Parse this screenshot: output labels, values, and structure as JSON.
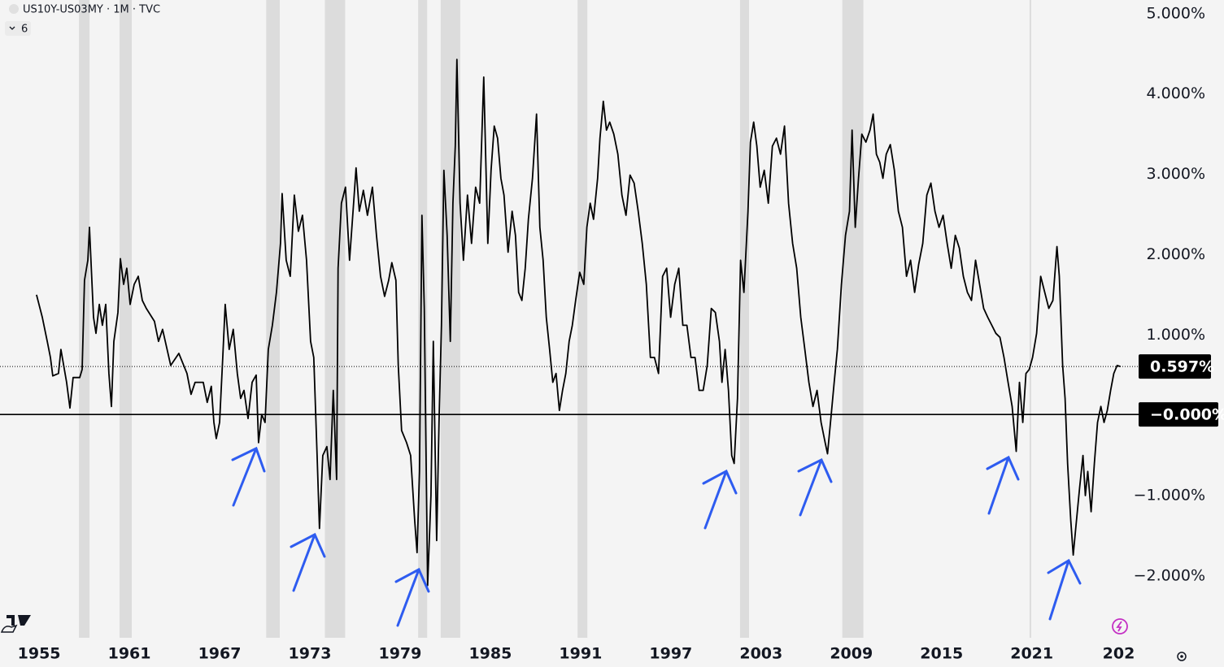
{
  "chart_data": {
    "type": "line",
    "title": "US10Y-US03MY · 1M · TVC",
    "indicator_badge": "6",
    "color": "#000000",
    "xlim": [
      1952.4,
      2028.1
    ],
    "ylim": [
      -2.78,
      5.16
    ],
    "xticks": [
      1955,
      1961,
      1967,
      1973,
      1979,
      1985,
      1991,
      1997,
      2003,
      2009,
      2015,
      2021,
      {
        "value": 2027,
        "label": "202"
      }
    ],
    "yticks": [
      {
        "value": 5,
        "label": "5.000%"
      },
      {
        "value": 4,
        "label": "4.000%"
      },
      {
        "value": 3,
        "label": "3.000%"
      },
      {
        "value": 2,
        "label": "2.000%"
      },
      {
        "value": 1,
        "label": "1.000%"
      },
      {
        "value": -1,
        "label": "−1.000%"
      },
      {
        "value": -2,
        "label": "−2.000%"
      }
    ],
    "price_lines": [
      {
        "value": 0.597,
        "label": "0.597%",
        "style": "dotted"
      },
      {
        "value": 0,
        "label": "−0.000%",
        "style": "solid"
      }
    ],
    "recessions": [
      [
        1957.65,
        1958.35
      ],
      [
        1960.35,
        1961.16
      ],
      [
        1970.1,
        1971.0
      ],
      [
        1974.0,
        1975.35
      ],
      [
        1980.2,
        1980.8
      ],
      [
        1981.7,
        1983.0
      ],
      [
        1990.8,
        1991.45
      ],
      [
        2001.6,
        2002.2
      ],
      [
        2008.4,
        2009.8
      ],
      [
        2020.85,
        2020.93
      ]
    ],
    "x": [
      1954.83,
      1955.21,
      1955.54,
      1955.75,
      1955.91,
      1956.29,
      1956.45,
      1956.83,
      1957.05,
      1957.26,
      1957.7,
      1957.86,
      1958.02,
      1958.24,
      1958.35,
      1958.62,
      1958.78,
      1959.0,
      1959.21,
      1959.43,
      1959.64,
      1959.81,
      1959.97,
      1960.24,
      1960.4,
      1960.62,
      1960.83,
      1961.05,
      1961.32,
      1961.59,
      1961.86,
      1962.13,
      1962.67,
      1962.94,
      1963.21,
      1963.75,
      1964.29,
      1964.83,
      1965.1,
      1965.37,
      1965.91,
      1966.18,
      1966.45,
      1966.62,
      1966.78,
      1967.0,
      1967.21,
      1967.37,
      1967.64,
      1967.91,
      1968.18,
      1968.4,
      1968.62,
      1968.89,
      1969.16,
      1969.43,
      1969.59,
      1969.8,
      1970.02,
      1970.24,
      1970.51,
      1970.78,
      1971.05,
      1971.16,
      1971.43,
      1971.7,
      1971.97,
      1972.24,
      1972.51,
      1972.78,
      1973.05,
      1973.26,
      1973.48,
      1973.64,
      1973.86,
      1974.13,
      1974.34,
      1974.56,
      1974.78,
      1974.88,
      1975.1,
      1975.37,
      1975.64,
      1975.91,
      1976.07,
      1976.29,
      1976.56,
      1976.83,
      1977.16,
      1977.43,
      1977.7,
      1977.97,
      1978.24,
      1978.45,
      1978.72,
      1978.88,
      1979.1,
      1979.43,
      1979.7,
      1979.97,
      1980.13,
      1980.29,
      1980.45,
      1980.61,
      1980.83,
      1981.05,
      1981.21,
      1981.43,
      1981.59,
      1981.75,
      1981.91,
      1982.13,
      1982.34,
      1982.51,
      1982.67,
      1982.78,
      1982.99,
      1983.21,
      1983.48,
      1983.75,
      1984.02,
      1984.29,
      1984.56,
      1984.83,
      1985.05,
      1985.26,
      1985.48,
      1985.7,
      1985.91,
      1986.18,
      1986.45,
      1986.67,
      1986.88,
      1987.1,
      1987.32,
      1987.53,
      1987.8,
      1988.07,
      1988.29,
      1988.51,
      1988.72,
      1988.94,
      1989.15,
      1989.37,
      1989.59,
      1989.8,
      1990.02,
      1990.24,
      1990.45,
      1990.67,
      1990.94,
      1991.21,
      1991.42,
      1991.64,
      1991.86,
      1992.13,
      1992.29,
      1992.51,
      1992.72,
      1992.94,
      1993.21,
      1993.48,
      1993.75,
      1994.02,
      1994.29,
      1994.56,
      1994.83,
      1995.1,
      1995.37,
      1995.64,
      1995.91,
      1996.18,
      1996.45,
      1996.72,
      1996.99,
      1997.26,
      1997.53,
      1997.8,
      1998.07,
      1998.34,
      1998.61,
      1998.88,
      1999.15,
      1999.42,
      1999.69,
      1999.96,
      2000.23,
      2000.4,
      2000.61,
      2000.83,
      2001.05,
      2001.21,
      2001.43,
      2001.64,
      2001.86,
      2002.13,
      2002.29,
      2002.51,
      2002.72,
      2002.94,
      2003.21,
      2003.48,
      2003.75,
      2004.02,
      2004.29,
      2004.56,
      2004.83,
      2005.1,
      2005.37,
      2005.64,
      2005.91,
      2006.18,
      2006.45,
      2006.72,
      2006.99,
      2007.26,
      2007.42,
      2007.64,
      2007.86,
      2008.07,
      2008.34,
      2008.61,
      2008.88,
      2009.05,
      2009.26,
      2009.48,
      2009.7,
      2009.97,
      2010.24,
      2010.45,
      2010.67,
      2010.89,
      2011.1,
      2011.32,
      2011.59,
      2011.86,
      2012.13,
      2012.4,
      2012.67,
      2012.94,
      2013.21,
      2013.48,
      2013.75,
      2014.02,
      2014.29,
      2014.56,
      2014.83,
      2015.1,
      2015.37,
      2015.64,
      2015.91,
      2016.18,
      2016.45,
      2016.72,
      2016.99,
      2017.26,
      2017.53,
      2017.8,
      2018.07,
      2018.34,
      2018.61,
      2018.88,
      2019.15,
      2019.42,
      2019.69,
      2019.96,
      2020.18,
      2020.4,
      2020.61,
      2020.83,
      2021.05,
      2021.32,
      2021.59,
      2021.86,
      2022.13,
      2022.4,
      2022.67,
      2022.83,
      2023.05,
      2023.21,
      2023.38,
      2023.59,
      2023.75,
      2023.97,
      2024.18,
      2024.4,
      2024.56,
      2024.72,
      2024.94,
      2025.16,
      2025.37,
      2025.59,
      2025.8,
      2026.02,
      2026.24,
      2026.45,
      2026.67,
      2026.89
    ],
    "values": [
      1.49,
      1.21,
      0.91,
      0.71,
      0.48,
      0.51,
      0.81,
      0.4,
      0.08,
      0.46,
      0.46,
      0.56,
      1.67,
      1.92,
      2.33,
      1.21,
      1.01,
      1.37,
      1.11,
      1.37,
      0.51,
      0.1,
      0.91,
      1.27,
      1.94,
      1.62,
      1.82,
      1.37,
      1.62,
      1.72,
      1.42,
      1.32,
      1.16,
      0.91,
      1.06,
      0.61,
      0.76,
      0.51,
      0.25,
      0.4,
      0.4,
      0.15,
      0.35,
      -0.1,
      -0.3,
      -0.1,
      0.71,
      1.37,
      0.81,
      1.06,
      0.51,
      0.2,
      0.3,
      -0.05,
      0.4,
      0.49,
      -0.35,
      0.0,
      -0.1,
      0.81,
      1.11,
      1.52,
      2.13,
      2.75,
      1.92,
      1.72,
      2.73,
      2.28,
      2.48,
      1.92,
      0.91,
      0.71,
      -0.51,
      -1.42,
      -0.51,
      -0.4,
      -0.81,
      0.3,
      -0.81,
      1.82,
      2.63,
      2.83,
      1.92,
      2.63,
      3.07,
      2.53,
      2.79,
      2.48,
      2.83,
      2.23,
      1.72,
      1.47,
      1.67,
      1.89,
      1.67,
      0.61,
      -0.2,
      -0.35,
      -0.51,
      -1.32,
      -1.72,
      -0.71,
      2.48,
      1.32,
      -2.13,
      -1.01,
      0.91,
      -1.57,
      -0.1,
      1.11,
      3.04,
      2.23,
      0.91,
      2.63,
      3.34,
      4.42,
      2.63,
      1.92,
      2.73,
      2.13,
      2.83,
      2.63,
      4.2,
      2.13,
      3.04,
      3.59,
      3.44,
      2.94,
      2.73,
      2.02,
      2.53,
      2.23,
      1.52,
      1.42,
      1.82,
      2.43,
      2.94,
      3.74,
      2.33,
      1.92,
      1.21,
      0.81,
      0.4,
      0.51,
      0.05,
      0.3,
      0.51,
      0.91,
      1.11,
      1.42,
      1.77,
      1.62,
      2.33,
      2.63,
      2.43,
      2.94,
      3.44,
      3.9,
      3.54,
      3.64,
      3.49,
      3.24,
      2.73,
      2.48,
      2.98,
      2.88,
      2.53,
      2.13,
      1.62,
      0.71,
      0.71,
      0.51,
      1.72,
      1.82,
      1.21,
      1.62,
      1.82,
      1.11,
      1.11,
      0.71,
      0.71,
      0.3,
      0.3,
      0.61,
      1.32,
      1.27,
      0.91,
      0.4,
      0.81,
      0.3,
      -0.51,
      -0.61,
      0.2,
      1.92,
      1.52,
      2.53,
      3.39,
      3.64,
      3.34,
      2.83,
      3.04,
      2.63,
      3.34,
      3.44,
      3.24,
      3.59,
      2.63,
      2.13,
      1.82,
      1.21,
      0.81,
      0.4,
      0.1,
      0.3,
      -0.1,
      -0.35,
      -0.49,
      -0.05,
      0.4,
      0.81,
      1.62,
      2.23,
      2.53,
      3.54,
      2.33,
      2.94,
      3.49,
      3.39,
      3.54,
      3.74,
      3.24,
      3.14,
      2.94,
      3.24,
      3.36,
      3.04,
      2.53,
      2.33,
      1.72,
      1.92,
      1.52,
      1.87,
      2.13,
      2.73,
      2.88,
      2.53,
      2.33,
      2.48,
      2.13,
      1.82,
      2.23,
      2.07,
      1.72,
      1.52,
      1.42,
      1.92,
      1.62,
      1.32,
      1.21,
      1.11,
      1.01,
      0.96,
      0.71,
      0.4,
      0.1,
      -0.46,
      0.4,
      -0.1,
      0.51,
      0.56,
      0.71,
      1.01,
      1.72,
      1.52,
      1.32,
      1.42,
      2.09,
      1.72,
      0.61,
      0.2,
      -0.61,
      -1.32,
      -1.75,
      -1.32,
      -0.91,
      -0.51,
      -1.01,
      -0.71,
      -1.21,
      -0.61,
      -0.1,
      0.1,
      -0.1,
      0.05,
      0.3,
      0.51,
      0.61,
      0.597
    ]
  }
}
